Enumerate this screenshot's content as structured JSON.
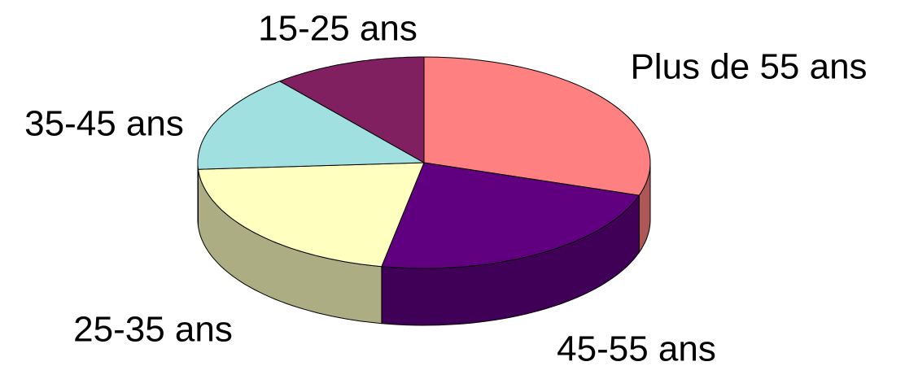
{
  "chart_data": {
    "type": "pie3d",
    "categories": [
      "Plus de 55 ans",
      "45-55 ans",
      "25-35 ans",
      "35-45 ans",
      "15-25 ans"
    ],
    "values": [
      30,
      23,
      21,
      15,
      11
    ],
    "colors": [
      "#ff8080",
      "#600080",
      "#ffffc0",
      "#a0e0e0",
      "#802060"
    ]
  }
}
